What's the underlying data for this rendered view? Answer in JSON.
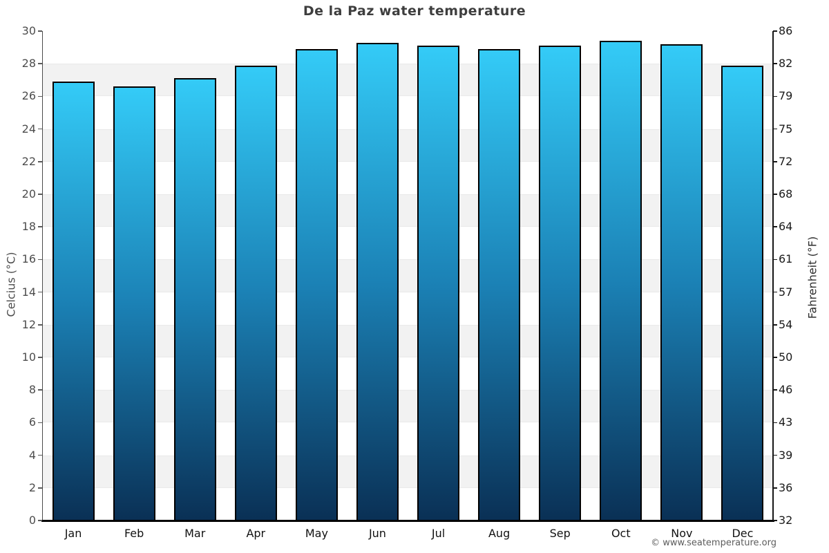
{
  "title": "De la Paz water temperature",
  "footer": "© www.seatemperature.org",
  "chart_data": {
    "type": "bar",
    "title": "De la Paz water temperature",
    "categories": [
      "Jan",
      "Feb",
      "Mar",
      "Apr",
      "May",
      "Jun",
      "Jul",
      "Aug",
      "Sep",
      "Oct",
      "Nov",
      "Dec"
    ],
    "values": [
      26.9,
      26.6,
      27.1,
      27.9,
      28.9,
      29.3,
      29.1,
      28.9,
      29.1,
      29.4,
      29.2,
      27.9
    ],
    "xlabel": "",
    "ylabel_left": "Celcius (°C)",
    "ylabel_right": "Fahrenheit (°F)",
    "ylim": [
      0,
      30
    ],
    "yticks_left": [
      0,
      2,
      4,
      6,
      8,
      10,
      12,
      14,
      16,
      18,
      20,
      22,
      24,
      26,
      28,
      30
    ],
    "yticks_right_labels": [
      "32",
      "36",
      "39",
      "43",
      "46",
      "50",
      "54",
      "57",
      "61",
      "64",
      "68",
      "72",
      "75",
      "79",
      "82",
      "86"
    ],
    "legend": "none",
    "grid": "alternating horizontal bands every 2°C",
    "colors": {
      "bar_gradient_top": "#34cbf7",
      "bar_gradient_mid": "#1b81b5",
      "bar_gradient_bottom": "#0a3055",
      "bar_border": "#000000",
      "band_gray": "#f2f2f2",
      "band_white": "#ffffff",
      "title_text": "#3e3e3e",
      "axis_text": "#4d4d4d"
    }
  }
}
